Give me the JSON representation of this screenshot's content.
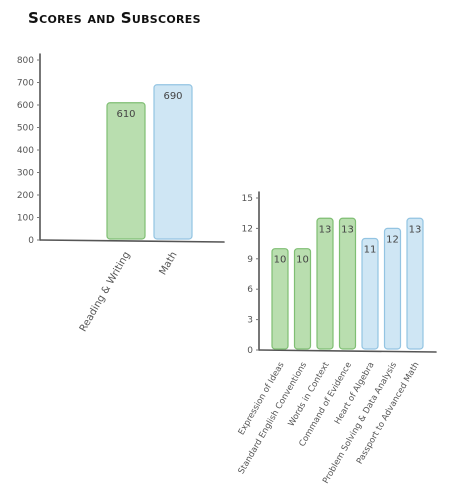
{
  "title": "Scores and Subscores",
  "colors": {
    "green_fill": "#b9deaf",
    "green_stroke": "#7fbf73",
    "blue_fill": "#cfe6f4",
    "blue_stroke": "#93c4e2",
    "axis": "#555555"
  },
  "chart_data": [
    {
      "type": "bar",
      "categories": [
        "Reading & Writing",
        "Math"
      ],
      "values": [
        610,
        690
      ],
      "value_labels": [
        "610",
        "690"
      ],
      "ylim": [
        0,
        800
      ],
      "yticks": [
        "0",
        "100",
        "200",
        "300",
        "400",
        "500",
        "600",
        "700",
        "800"
      ],
      "bar_colors": [
        "green",
        "blue"
      ],
      "grid": false
    },
    {
      "type": "bar",
      "categories": [
        "Expression of Ideas",
        "Standard English Conventions",
        "Words in Context",
        "Command of Evidence",
        "Heart of Algebra",
        "Problem Solving & Data Analysis",
        "Passport to Advanced Math"
      ],
      "values": [
        10,
        10,
        13,
        13,
        11,
        12,
        13
      ],
      "value_labels": [
        "10",
        "10",
        "13",
        "13",
        "11",
        "12",
        "13"
      ],
      "ylim": [
        0,
        15
      ],
      "yticks": [
        "0",
        "3",
        "6",
        "9",
        "12",
        "15"
      ],
      "bar_colors": [
        "green",
        "green",
        "green",
        "green",
        "blue",
        "blue",
        "blue"
      ],
      "grid": false
    }
  ]
}
